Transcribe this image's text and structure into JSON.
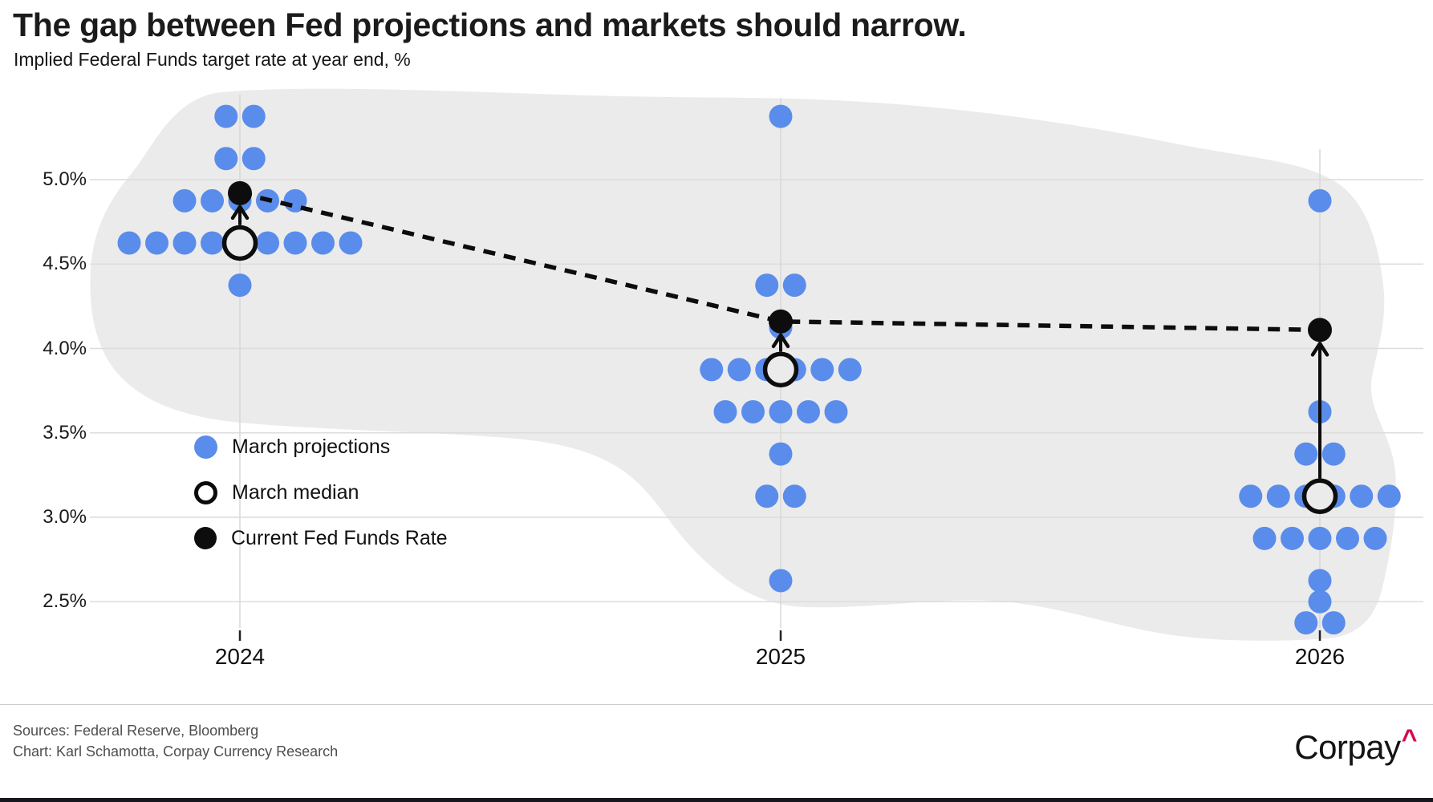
{
  "header": {
    "title": "The gap between Fed projections and markets should narrow.",
    "subtitle": "Implied Federal Funds target rate at year end, %"
  },
  "legend": {
    "items": [
      {
        "label": "March projections",
        "marker": "blue-dot"
      },
      {
        "label": "March median",
        "marker": "open-circle"
      },
      {
        "label": "Current Fed Funds Rate",
        "marker": "black-dot"
      }
    ]
  },
  "footer": {
    "sources_line": "Sources: Federal Reserve, Bloomberg",
    "credit_line": "Chart: Karl Schamotta, Corpay Currency Research",
    "logo_text": "Corpay",
    "logo_caret": "^"
  },
  "colors": {
    "projection_blue": "#5a8ceb",
    "marker_black": "#0d0d0d",
    "blob_gray": "#ebebeb",
    "grid_gray": "#dcdcdc",
    "year_grid_gray": "#d8d8d8",
    "caret_red": "#d30b4e",
    "bottom_bar": "#16161e"
  },
  "chart_data": {
    "type": "scatter",
    "title": "The gap between Fed projections and markets should narrow.",
    "ylabel": "Implied Federal Funds target rate at year end, %",
    "xlabel": "",
    "grid": true,
    "legend_position": "middle-left",
    "y_axis": {
      "range": [
        2.25,
        5.5
      ],
      "ticks": [
        {
          "value": 5.0,
          "label": "5.0%"
        },
        {
          "value": 4.5,
          "label": "4.5%"
        },
        {
          "value": 4.0,
          "label": "4.0%"
        },
        {
          "value": 3.5,
          "label": "3.5%"
        },
        {
          "value": 3.0,
          "label": "3.0%"
        },
        {
          "value": 2.5,
          "label": "2.5%"
        }
      ]
    },
    "x_axis": {
      "categories": [
        "2024",
        "2025",
        "2026"
      ]
    },
    "years": [
      {
        "label": "2024",
        "march_projections": [
          {
            "rate": 5.375,
            "count": 2
          },
          {
            "rate": 5.125,
            "count": 2
          },
          {
            "rate": 4.875,
            "count": 5
          },
          {
            "rate": 4.625,
            "count": 9
          },
          {
            "rate": 4.375,
            "count": 1
          }
        ],
        "march_median": 4.625,
        "current_fed_funds_rate": 4.92
      },
      {
        "label": "2025",
        "march_projections": [
          {
            "rate": 5.375,
            "count": 1
          },
          {
            "rate": 4.375,
            "count": 2
          },
          {
            "rate": 4.125,
            "count": 1
          },
          {
            "rate": 3.875,
            "count": 6
          },
          {
            "rate": 3.625,
            "count": 5
          },
          {
            "rate": 3.375,
            "count": 1
          },
          {
            "rate": 3.125,
            "count": 2
          },
          {
            "rate": 2.625,
            "count": 1
          }
        ],
        "march_median": 3.875,
        "current_fed_funds_rate": 4.16
      },
      {
        "label": "2026",
        "march_projections": [
          {
            "rate": 4.875,
            "count": 1
          },
          {
            "rate": 3.625,
            "count": 1
          },
          {
            "rate": 3.375,
            "count": 2
          },
          {
            "rate": 3.125,
            "count": 6
          },
          {
            "rate": 2.875,
            "count": 5
          },
          {
            "rate": 2.625,
            "count": 1
          },
          {
            "rate": 2.5,
            "count": 1
          },
          {
            "rate": 2.375,
            "count": 2
          }
        ],
        "march_median": 3.125,
        "current_fed_funds_rate": 4.11
      }
    ]
  }
}
